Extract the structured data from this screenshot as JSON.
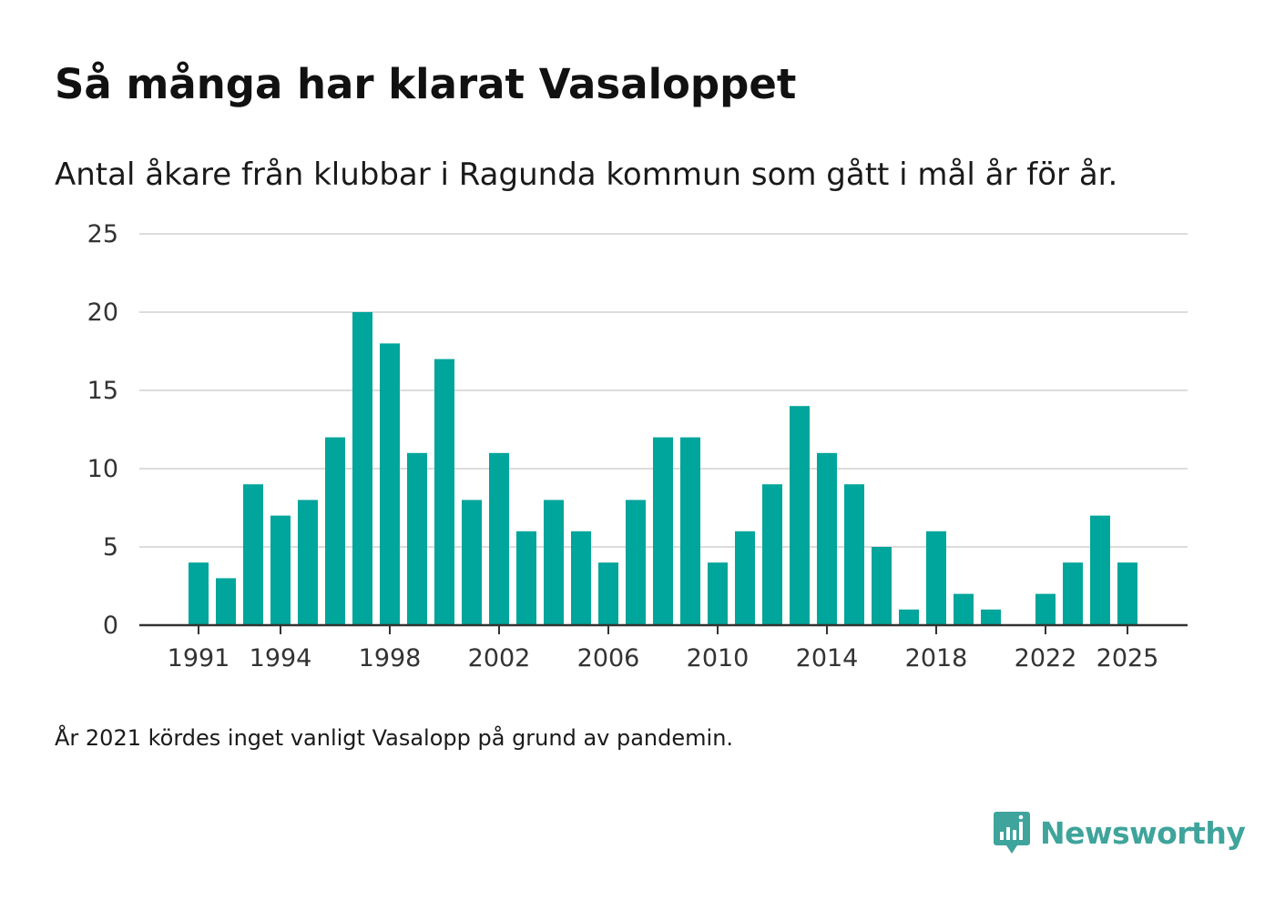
{
  "title": "Så många har klarat Vasaloppet",
  "subtitle": "Antal åkare från klubbar i Ragunda kommun som gått i mål år för år.",
  "note": "År 2021 kördes inget vanligt Vasalopp på grund av pandemin.",
  "logo": {
    "text": "Newsworthy",
    "icon": "newsworthy-logo-icon",
    "color": "#3fa49b"
  },
  "chart_data": {
    "type": "bar",
    "title": "Så många har klarat Vasaloppet",
    "xlabel": "",
    "ylabel": "",
    "bar_color": "#00a59b",
    "ylim": [
      0,
      25
    ],
    "yticks": [
      0,
      5,
      10,
      15,
      20,
      25
    ],
    "xticks": [
      1991,
      1994,
      1998,
      2002,
      2006,
      2010,
      2014,
      2018,
      2022,
      2025
    ],
    "x_range": [
      1989,
      2026
    ],
    "grid": true,
    "categories": [
      1991,
      1992,
      1993,
      1994,
      1995,
      1996,
      1997,
      1998,
      1999,
      2000,
      2001,
      2002,
      2003,
      2004,
      2005,
      2006,
      2007,
      2008,
      2009,
      2010,
      2011,
      2012,
      2013,
      2014,
      2015,
      2016,
      2017,
      2018,
      2019,
      2020,
      2021,
      2022,
      2023,
      2024,
      2025
    ],
    "values": [
      4,
      3,
      9,
      7,
      8,
      12,
      20,
      18,
      11,
      17,
      8,
      11,
      6,
      8,
      6,
      4,
      8,
      12,
      12,
      4,
      6,
      9,
      14,
      11,
      9,
      5,
      1,
      6,
      2,
      1,
      0,
      2,
      4,
      7,
      4
    ]
  }
}
